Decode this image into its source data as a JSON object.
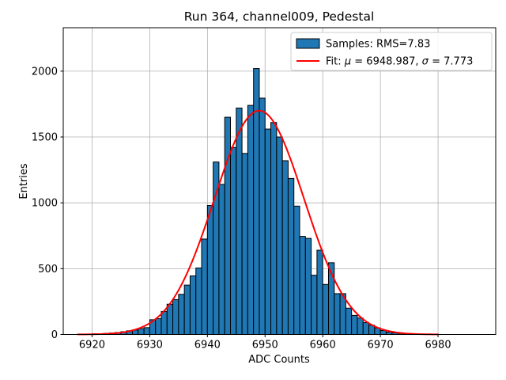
{
  "chart_data": {
    "type": "histogram",
    "title": "Run 364, channel009, Pedestal",
    "xlabel": "ADC Counts",
    "ylabel": "Entries",
    "xlim": [
      6915,
      6990
    ],
    "ylim": [
      0,
      2330
    ],
    "xticks": [
      6920,
      6930,
      6940,
      6950,
      6960,
      6970,
      6980
    ],
    "yticks": [
      0,
      500,
      1000,
      1500,
      2000
    ],
    "grid": true,
    "grid_color": "#b0b0b0",
    "background_color": "#ffffff",
    "spine_color": "#000000",
    "histogram": {
      "label": "Samples: RMS=7.83",
      "rms": 7.83,
      "bin_start": 6918,
      "bin_width": 1,
      "fill_color": "#1f77b4",
      "edge_color": "#000000",
      "counts": [
        2,
        3,
        5,
        4,
        8,
        11,
        15,
        21,
        28,
        34,
        44,
        52,
        112,
        120,
        175,
        230,
        265,
        305,
        375,
        445,
        505,
        725,
        980,
        1310,
        1140,
        1650,
        1420,
        1720,
        1375,
        1740,
        2020,
        1795,
        1560,
        1610,
        1500,
        1320,
        1185,
        975,
        745,
        730,
        450,
        640,
        380,
        545,
        310,
        310,
        200,
        145,
        125,
        90,
        70,
        50,
        30,
        18,
        12,
        8,
        5,
        3,
        2,
        2,
        1,
        1
      ]
    },
    "fit": {
      "label": "Fit: μ = 6948.987, σ = 7.773",
      "mu": 6948.987,
      "sigma": 7.773,
      "amplitude": 1700,
      "color": "#ff0000",
      "x_range": [
        6917.5,
        6980
      ]
    },
    "legend": {
      "position": "upper right",
      "border_color": "#cccccc",
      "background": "#ffffff"
    }
  }
}
